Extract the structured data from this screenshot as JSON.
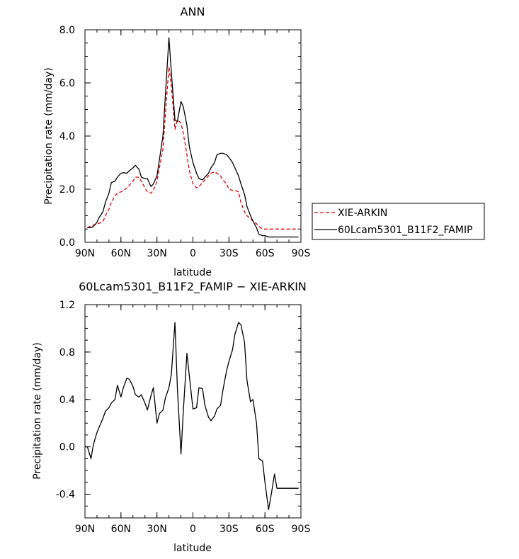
{
  "chart_data": [
    {
      "type": "line",
      "title": "ANN",
      "xlabel": "latitude",
      "ylabel": "Precipitation rate (mm/day)",
      "ylim": [
        0,
        8
      ],
      "yticks": [
        0,
        2,
        4,
        6,
        8
      ],
      "ytick_labels": [
        "0.0",
        "2.0",
        "4.0",
        "6.0",
        "8.0"
      ],
      "xlim": [
        90,
        -90
      ],
      "xticks": [
        90,
        60,
        30,
        0,
        -30,
        -60,
        -90
      ],
      "xtick_labels": [
        "90N",
        "60N",
        "30N",
        "0",
        "30S",
        "60S",
        "90S"
      ],
      "legend_position": "right",
      "x": [
        88,
        85,
        83,
        80,
        78,
        75,
        73,
        70,
        68,
        65,
        63,
        60,
        58,
        55,
        53,
        50,
        48,
        45,
        43,
        40,
        38,
        35,
        33,
        30,
        28,
        25,
        23,
        20,
        18,
        15,
        13,
        10,
        8,
        5,
        3,
        0,
        -3,
        -5,
        -8,
        -10,
        -13,
        -15,
        -18,
        -20,
        -23,
        -25,
        -28,
        -30,
        -33,
        -35,
        -38,
        -40,
        -43,
        -45,
        -48,
        -50,
        -53,
        -55,
        -58,
        -60,
        -63,
        -65,
        -68,
        -70,
        -73,
        -75,
        -78,
        -80,
        -83,
        -85,
        -88
      ],
      "series": [
        {
          "name": "XIE-ARKIN",
          "color": "#e00000",
          "dash": true,
          "values": [
            0.55,
            0.62,
            0.65,
            0.68,
            0.72,
            0.78,
            1.0,
            1.25,
            1.5,
            1.75,
            1.85,
            1.9,
            1.95,
            2.05,
            2.15,
            2.3,
            2.45,
            2.45,
            2.3,
            2.05,
            1.9,
            1.85,
            1.95,
            2.3,
            2.8,
            3.5,
            4.8,
            6.6,
            5.9,
            4.25,
            4.6,
            4.5,
            4.1,
            3.3,
            2.7,
            2.2,
            2.05,
            2.1,
            2.25,
            2.35,
            2.5,
            2.6,
            2.65,
            2.6,
            2.5,
            2.35,
            2.2,
            2.0,
            1.95,
            1.95,
            1.9,
            1.5,
            1.15,
            1.0,
            0.9,
            0.8,
            0.7,
            0.6,
            0.5,
            0.5,
            0.5,
            0.5,
            0.5,
            0.5,
            0.5,
            0.5,
            0.5,
            0.5,
            0.5,
            0.5,
            0.5
          ]
        },
        {
          "name": "60Lcam5301_B11F2_FAMIP",
          "color": "#000000",
          "dash": false,
          "values": [
            0.55,
            0.55,
            0.6,
            0.75,
            0.95,
            1.15,
            1.5,
            1.85,
            2.25,
            2.3,
            2.45,
            2.6,
            2.62,
            2.6,
            2.7,
            2.8,
            2.9,
            2.75,
            2.45,
            2.4,
            2.4,
            2.1,
            2.2,
            2.5,
            3.1,
            4.0,
            5.5,
            7.7,
            6.4,
            4.6,
            4.55,
            5.3,
            5.1,
            4.4,
            3.6,
            3.0,
            2.6,
            2.4,
            2.35,
            2.45,
            2.6,
            2.8,
            3.0,
            3.3,
            3.35,
            3.35,
            3.3,
            3.2,
            3.0,
            2.8,
            2.5,
            2.2,
            1.8,
            1.35,
            1.0,
            0.8,
            0.55,
            0.3,
            0.25,
            0.25,
            0.2,
            0.2,
            0.2,
            0.2,
            0.2,
            0.2,
            0.2,
            0.2,
            0.2,
            0.2,
            0.2
          ]
        }
      ]
    },
    {
      "type": "line",
      "title": "60Lcam5301_B11F2_FAMIP − XIE-ARKIN",
      "xlabel": "latitude",
      "ylabel": "Precipitation rate (mm/day)",
      "ylim": [
        -0.6,
        1.2
      ],
      "yticks": [
        -0.4,
        0.0,
        0.4,
        0.8,
        1.2
      ],
      "ytick_labels": [
        "-0.4",
        "0.0",
        "0.4",
        "0.8",
        "1.2"
      ],
      "xlim": [
        90,
        -90
      ],
      "xticks": [
        90,
        60,
        30,
        0,
        -30,
        -60,
        -90
      ],
      "xtick_labels": [
        "90N",
        "60N",
        "30N",
        "0",
        "30S",
        "60S",
        "90S"
      ],
      "x": [
        88,
        85,
        83,
        80,
        78,
        75,
        73,
        70,
        68,
        65,
        63,
        60,
        58,
        55,
        53,
        50,
        48,
        45,
        43,
        40,
        38,
        35,
        33,
        30,
        28,
        25,
        23,
        20,
        18,
        15,
        13,
        10,
        8,
        5,
        3,
        0,
        -3,
        -5,
        -8,
        -10,
        -13,
        -15,
        -18,
        -20,
        -23,
        -25,
        -28,
        -30,
        -33,
        -35,
        -38,
        -40,
        -43,
        -45,
        -48,
        -50,
        -53,
        -55,
        -58,
        -60,
        -63,
        -65,
        -68,
        -70,
        -73,
        -75,
        -78,
        -80,
        -83,
        -85,
        -88
      ],
      "series": [
        {
          "color": "#000000",
          "values": [
            0.0,
            -0.1,
            0.02,
            0.12,
            0.17,
            0.24,
            0.3,
            0.33,
            0.37,
            0.4,
            0.52,
            0.42,
            0.5,
            0.58,
            0.57,
            0.51,
            0.44,
            0.42,
            0.44,
            0.37,
            0.31,
            0.43,
            0.5,
            0.2,
            0.28,
            0.31,
            0.41,
            0.5,
            0.61,
            1.05,
            0.5,
            -0.06,
            0.3,
            0.79,
            0.6,
            0.32,
            0.33,
            0.5,
            0.49,
            0.35,
            0.25,
            0.22,
            0.26,
            0.32,
            0.35,
            0.48,
            0.64,
            0.72,
            0.82,
            0.95,
            1.05,
            1.03,
            0.88,
            0.56,
            0.38,
            0.4,
            0.2,
            -0.1,
            -0.12,
            -0.3,
            -0.53,
            -0.42,
            -0.23,
            -0.35,
            -0.35,
            -0.35,
            -0.35,
            -0.35,
            -0.35,
            -0.35,
            -0.35
          ]
        }
      ]
    }
  ]
}
